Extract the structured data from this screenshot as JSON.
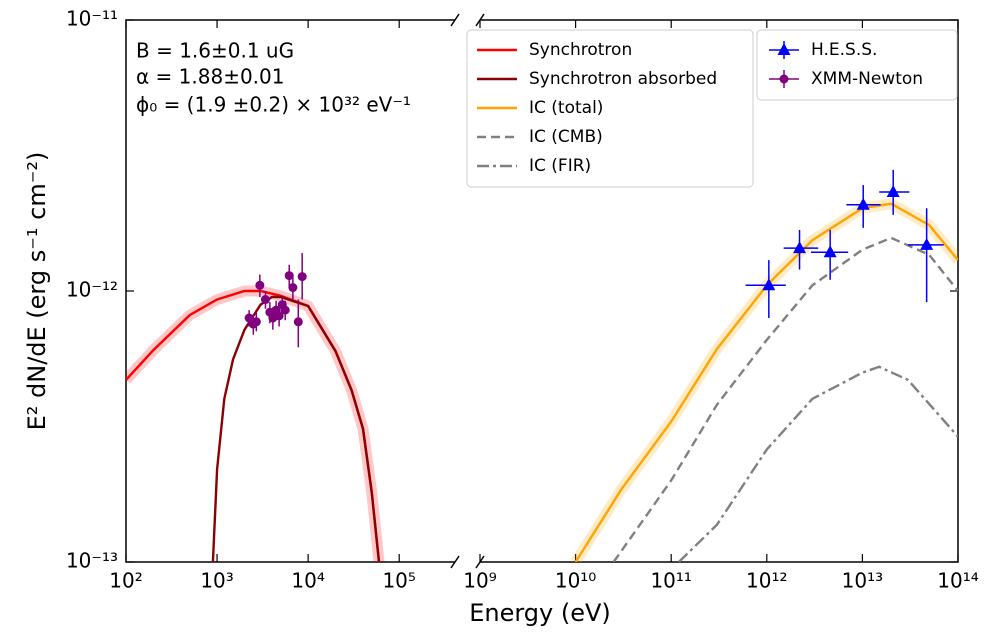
{
  "chart_data": {
    "type": "line",
    "xlabel": "Energy (eV)",
    "ylabel": "E² dN/dE (erg s⁻¹ cm⁻²)",
    "xscale": "log",
    "yscale": "log",
    "ylim": [
      1e-13,
      1e-11
    ],
    "yticks": [
      {
        "value": 1e-13,
        "label": "10⁻¹³"
      },
      {
        "value": 1e-12,
        "label": "10⁻¹²"
      },
      {
        "value": 1e-11,
        "label": "10⁻¹¹"
      }
    ],
    "panels": [
      {
        "xlim": [
          100,
          410000
        ],
        "xticks": [
          {
            "value": 100,
            "label": "10²"
          },
          {
            "value": 1000,
            "label": "10³"
          },
          {
            "value": 10000,
            "label": "10⁴"
          },
          {
            "value": 100000,
            "label": "10⁵"
          }
        ]
      },
      {
        "xlim": [
          1000000000.0,
          100000000000000.0
        ],
        "xticks": [
          {
            "value": 1000000000.0,
            "label": "10⁹"
          },
          {
            "value": 10000000000.0,
            "label": "10¹⁰"
          },
          {
            "value": 100000000000.0,
            "label": "10¹¹"
          },
          {
            "value": 1000000000000.0,
            "label": "10¹²"
          },
          {
            "value": 10000000000000.0,
            "label": "10¹³"
          },
          {
            "value": 100000000000000.0,
            "label": "10¹⁴"
          }
        ]
      }
    ],
    "annotations": [
      "B = 1.6±0.1 uG",
      "α = 1.88±0.01",
      "ϕ₀ = (1.9 ±0.2) × 10³² eV⁻¹"
    ],
    "series": [
      {
        "name": "Synchrotron",
        "color": "#ff0000",
        "linestyle": "solid",
        "band": true,
        "x": [
          100,
          200,
          500,
          1000,
          2000,
          3000,
          5000,
          10000,
          20000,
          30000,
          40000,
          50000,
          60000
        ],
        "values": [
          4.7e-13,
          6.05e-13,
          8.15e-13,
          9.3e-13,
          1e-12,
          1e-12,
          9.6e-13,
          8.8e-13,
          6e-13,
          4.3e-13,
          3.1e-13,
          1.8e-13,
          1e-13
        ]
      },
      {
        "name": "Synchrotron absorbed",
        "color": "#8b0000",
        "linestyle": "solid",
        "band": false,
        "x": [
          900,
          1000,
          1200,
          1500,
          2000,
          3000,
          4000,
          5000,
          10000,
          20000,
          30000,
          40000,
          50000,
          60000
        ],
        "values": [
          1e-13,
          2.2e-13,
          4e-13,
          5.6e-13,
          7.2e-13,
          8.9e-13,
          9.5e-13,
          9.5e-13,
          8.8e-13,
          6e-13,
          4.3e-13,
          3.1e-13,
          1.8e-13,
          1e-13
        ]
      },
      {
        "name": "IC (total)",
        "color": "#ffa500",
        "linestyle": "solid",
        "band": true,
        "x": [
          10000000000.0,
          30000000000.0,
          100000000000.0,
          300000000000.0,
          1000000000000.0,
          3000000000000.0,
          10000000000000.0,
          20000000000000.0,
          50000000000000.0,
          100000000000000.0
        ],
        "values": [
          1e-13,
          1.85e-13,
          3.3e-13,
          6.1e-13,
          1.05e-12,
          1.54e-12,
          2.02e-12,
          2.1e-12,
          1.75e-12,
          1.3e-12
        ]
      },
      {
        "name": "IC (CMB)",
        "color": "#808080",
        "linestyle": "dashed",
        "band": false,
        "x": [
          25000000000.0,
          100000000000.0,
          300000000000.0,
          1000000000000.0,
          3000000000000.0,
          10000000000000.0,
          20000000000000.0,
          50000000000000.0,
          100000000000000.0
        ],
        "values": [
          1e-13,
          2e-13,
          3.8e-13,
          6.6e-13,
          1.05e-12,
          1.42e-12,
          1.57e-12,
          1.36e-12,
          1e-12
        ]
      },
      {
        "name": "IC (FIR)",
        "color": "#808080",
        "linestyle": "dashdot",
        "band": false,
        "x": [
          120000000000.0,
          300000000000.0,
          1000000000000.0,
          3000000000000.0,
          10000000000000.0,
          15000000000000.0,
          30000000000000.0,
          100000000000000.0
        ],
        "values": [
          1e-13,
          1.37e-13,
          2.6e-13,
          4e-13,
          5e-13,
          5.25e-13,
          4.7e-13,
          2.9e-13
        ]
      },
      {
        "name": "H.E.S.S.",
        "color": "#0000ff",
        "marker": "triangle",
        "x": [
          1050000000000.0,
          2200000000000.0,
          4600000000000.0,
          10200000000000.0,
          21000000000000.0,
          47000000000000.0
        ],
        "x_lower": [
          600000000000.0,
          1500000000000.0,
          2900000000000.0,
          6800000000000.0,
          15000000000000.0,
          30000000000000.0
        ],
        "x_upper": [
          1580000000000.0,
          3450000000000.0,
          7100000000000.0,
          15500000000000.0,
          31000000000000.0,
          71000000000000.0
        ],
        "values": [
          1.05e-12,
          1.44e-12,
          1.39e-12,
          2.08e-12,
          2.32e-12,
          1.48e-12
        ],
        "y_lower": [
          7.95e-13,
          1.2e-12,
          1.1e-12,
          1.71e-12,
          1.91e-12,
          9.1e-13
        ],
        "y_upper": [
          1.3e-12,
          1.68e-12,
          1.68e-12,
          2.46e-12,
          2.8e-12,
          2.02e-12
        ]
      },
      {
        "name": "XMM-Newton",
        "color": "#800080",
        "marker": "circle",
        "x": [
          2250,
          2500,
          2700,
          2950,
          3400,
          3800,
          4100,
          4450,
          4800,
          5200,
          5600,
          6200,
          6800,
          7800,
          8600
        ],
        "values": [
          7.95e-13,
          7.55e-13,
          7.7e-13,
          1.05e-12,
          9.3e-13,
          8.35e-13,
          7.95e-13,
          8.5e-13,
          8.1e-13,
          8.9e-13,
          8.5e-13,
          1.14e-12,
          1.03e-12,
          7.7e-13,
          1.13e-12
        ],
        "y_lower": [
          7.4e-13,
          6.9e-13,
          7.1e-13,
          9.5e-13,
          8.6e-13,
          7.6e-13,
          7.2e-13,
          7.8e-13,
          7.4e-13,
          8.2e-13,
          7.8e-13,
          1.03e-12,
          9.3e-13,
          6.2e-13,
          9.3e-13
        ],
        "y_upper": [
          8.5e-13,
          8.2e-13,
          8.3e-13,
          1.15e-12,
          1e-12,
          9.1e-13,
          8.7e-13,
          9.2e-13,
          8.8e-13,
          9.6e-13,
          9.2e-13,
          1.25e-12,
          1.13e-12,
          9.3e-13,
          1.38e-12
        ]
      }
    ]
  }
}
